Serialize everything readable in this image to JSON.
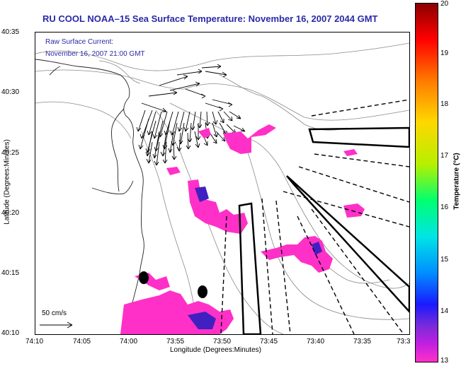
{
  "title": "RU COOL  NOAA–15  Sea Surface Temperature:  November 16, 2007 2044 GMT",
  "current": {
    "label_line1": "Raw Surface Current:",
    "label_line2": "November 16, 2007 21:00 GMT"
  },
  "axes": {
    "ylabel": "Latitude (Degrees:Minutes)",
    "xlabel": "Longitude (Degrees:Minutes)",
    "yticks": [
      "40:35",
      "40:30",
      "40:25",
      "40:20",
      "40:15",
      "40:10"
    ],
    "xticks": [
      "74:10",
      "74:05",
      "74:00",
      "73:55",
      "73:50",
      "73:45",
      "73:40",
      "73:35",
      "73:3"
    ]
  },
  "scale": {
    "label": "50 cm/s"
  },
  "colorbar": {
    "title": "Temperature (°C)",
    "ticks": [
      "20",
      "19",
      "18",
      "17",
      "16",
      "15",
      "14",
      "13"
    ],
    "min": 13,
    "max": 20,
    "colors": [
      "#8b0000",
      "#ff0000",
      "#ff7f00",
      "#ffd700",
      "#00ff70",
      "#00e5e5",
      "#1a1aff",
      "#ff30c8"
    ]
  },
  "sst_color": "#ff30c8",
  "cool_color": "#4020c0"
}
